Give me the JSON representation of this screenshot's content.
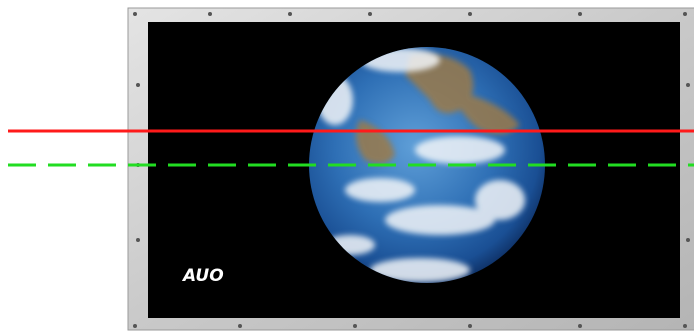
{
  "screen": {
    "logo": "AUO"
  }
}
